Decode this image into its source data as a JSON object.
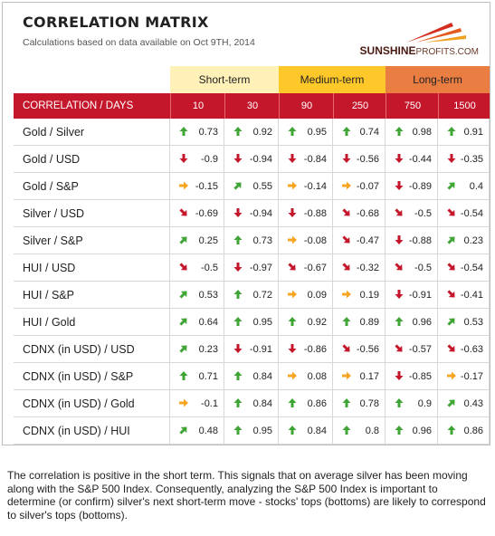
{
  "header": {
    "title": "CORRELATION MATRIX",
    "subtitle": "Calculations based on data available on Oct 9TH, 2014",
    "logo_text": "SUNSHINE",
    "logo_text2": "PROFITS.COM"
  },
  "colors": {
    "header_red": "#c5172b",
    "short_band": "#fff1b8",
    "medium_band": "#ffc82a",
    "long_band": "#ea7d42",
    "up_arrow": "#3fa535",
    "down_arrow": "#c5172b",
    "flat_arrow": "#f5a623"
  },
  "chart_data": {
    "type": "table",
    "bands": [
      "Short-term",
      "Medium-term",
      "Long-term"
    ],
    "row_header": "CORRELATION / DAYS",
    "columns": [
      "10",
      "30",
      "90",
      "250",
      "750",
      "1500"
    ],
    "rows": [
      {
        "label": "Gold / Silver",
        "values": [
          0.73,
          0.92,
          0.95,
          0.74,
          0.98,
          0.91
        ],
        "arrows": [
          "up",
          "up",
          "up",
          "up",
          "up",
          "up"
        ]
      },
      {
        "label": "Gold / USD",
        "values": [
          -0.9,
          -0.94,
          -0.84,
          -0.56,
          -0.44,
          -0.35
        ],
        "arrows": [
          "down",
          "down",
          "down",
          "down",
          "down",
          "down"
        ]
      },
      {
        "label": "Gold / S&P",
        "values": [
          -0.15,
          0.55,
          -0.14,
          -0.07,
          -0.89,
          0.4
        ],
        "arrows": [
          "flat",
          "up-right",
          "flat",
          "flat",
          "down",
          "up-right"
        ]
      },
      {
        "label": "Silver / USD",
        "values": [
          -0.69,
          -0.94,
          -0.88,
          -0.68,
          -0.5,
          -0.54
        ],
        "arrows": [
          "down-right",
          "down",
          "down",
          "down-right",
          "down-right",
          "down-right"
        ]
      },
      {
        "label": "Silver / S&P",
        "values": [
          0.25,
          0.73,
          -0.08,
          -0.47,
          -0.88,
          0.23
        ],
        "arrows": [
          "up-right",
          "up",
          "flat",
          "down-right",
          "down",
          "up-right"
        ]
      },
      {
        "label": "HUI / USD",
        "values": [
          -0.5,
          -0.97,
          -0.67,
          -0.32,
          -0.5,
          -0.54
        ],
        "arrows": [
          "down-right",
          "down",
          "down-right",
          "down-right",
          "down-right",
          "down-right"
        ]
      },
      {
        "label": "HUI / S&P",
        "values": [
          0.53,
          0.72,
          0.09,
          0.19,
          -0.91,
          -0.41
        ],
        "arrows": [
          "up-right",
          "up",
          "flat",
          "flat",
          "down",
          "down-right"
        ]
      },
      {
        "label": "HUI / Gold",
        "values": [
          0.64,
          0.95,
          0.92,
          0.89,
          0.96,
          0.53
        ],
        "arrows": [
          "up-right",
          "up",
          "up",
          "up",
          "up",
          "up-right"
        ]
      },
      {
        "label": "CDNX (in USD) / USD",
        "values": [
          0.23,
          -0.91,
          -0.86,
          -0.56,
          -0.57,
          -0.63
        ],
        "arrows": [
          "up-right",
          "down",
          "down",
          "down-right",
          "down-right",
          "down-right"
        ]
      },
      {
        "label": "CDNX (in USD) / S&P",
        "values": [
          0.71,
          0.84,
          0.08,
          0.17,
          -0.85,
          -0.17
        ],
        "arrows": [
          "up",
          "up",
          "flat",
          "flat",
          "down",
          "flat"
        ]
      },
      {
        "label": "CDNX (in USD) / Gold",
        "values": [
          -0.1,
          0.84,
          0.86,
          0.78,
          0.9,
          0.43
        ],
        "arrows": [
          "flat",
          "up",
          "up",
          "up",
          "up",
          "up-right"
        ]
      },
      {
        "label": "CDNX (in USD) / HUI",
        "values": [
          0.48,
          0.95,
          0.84,
          0.8,
          0.96,
          0.86
        ],
        "arrows": [
          "up-right",
          "up",
          "up",
          "up",
          "up",
          "up"
        ]
      }
    ]
  },
  "note": "The correlation is positive in the short term. This signals that on average silver has been moving along with the S&P 500 Index. Consequently, analyzing the S&P 500 Index is important to determine (or confirm) silver's next short-term move - stocks' tops (bottoms) are likely to correspond to silver's tops (bottoms)."
}
